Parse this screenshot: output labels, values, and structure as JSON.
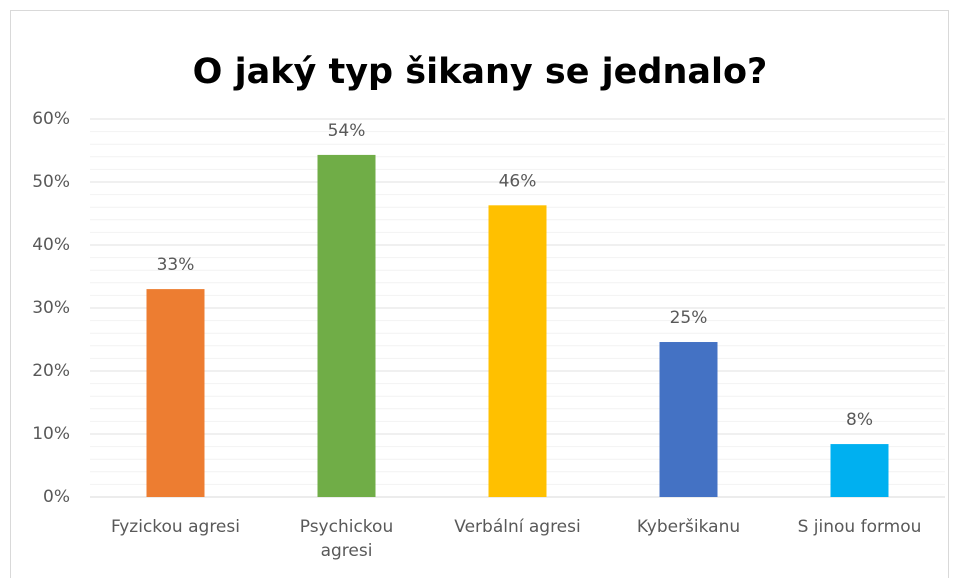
{
  "chart_data": {
    "type": "bar",
    "title": "O jaký typ šikany se jednalo?",
    "categories": [
      "Fyzickou agresi",
      "Psychickou agresi",
      "Verbální agresi",
      "Kyberšikanu",
      "S jinou formou"
    ],
    "values": [
      33,
      54.3,
      46.3,
      24.6,
      8.4
    ],
    "value_labels": [
      "33%",
      "54%",
      "46%",
      "25%",
      "8%"
    ],
    "colors": [
      "#ed7d31",
      "#70ad47",
      "#ffc000",
      "#4472c4",
      "#00b0f0"
    ],
    "ylim": [
      0,
      60
    ],
    "yticks": [
      {
        "value": 0,
        "label": "0%"
      },
      {
        "value": 10,
        "label": "10%"
      },
      {
        "value": 20,
        "label": "20%"
      },
      {
        "value": 30,
        "label": "30%"
      },
      {
        "value": 40,
        "label": "40%"
      },
      {
        "value": 50,
        "label": "50%"
      },
      {
        "value": 60,
        "label": "60%"
      }
    ],
    "grid": true,
    "minor_grid_divisions": 5
  }
}
